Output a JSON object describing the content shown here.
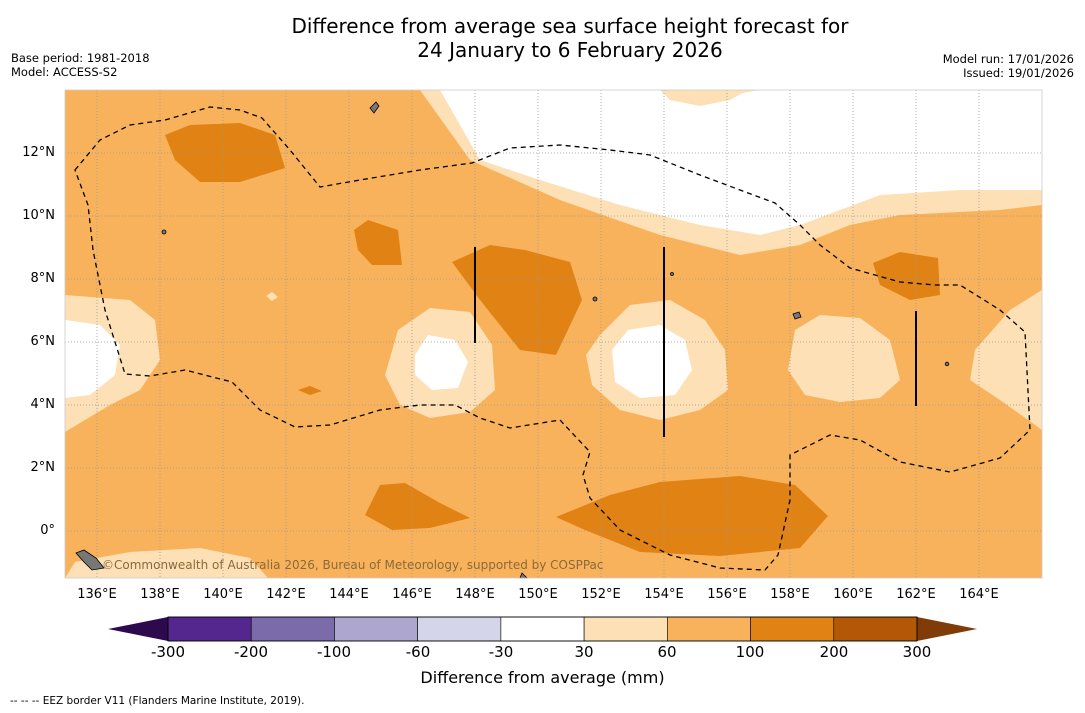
{
  "title_line1": "Difference from average sea surface height forecast for",
  "title_line2": "24 January to 6 February 2026",
  "base_period": "Base period: 1981-2018",
  "model": "Model: ACCESS-S2",
  "model_run": "Model run: 17/01/2026",
  "issued": "Issued: 19/01/2026",
  "copyright": "©Commonwealth of Australia 2026, Bureau of Meteorology, supported by COSPPac",
  "footnote": "--  --  -- EEZ border V11 (Flanders Marine Institute, 2019).",
  "colorbar_title": "Difference from average (mm)",
  "colorbar_ticks": [
    "-300",
    "-200",
    "-100",
    "-60",
    "-30",
    "30",
    "60",
    "100",
    "200",
    "300"
  ],
  "colorbar_colors": [
    "#54278f",
    "#7c6bab",
    "#ada7cf",
    "#d5d5e9",
    "#ffffff",
    "#fde0b5",
    "#f9b25c",
    "#e08214",
    "#b35806"
  ],
  "colorbar_extend_colors": [
    "#2d0a4e",
    "#7f3b08"
  ],
  "lat_labels": [
    "12°N",
    "10°N",
    "8°N",
    "6°N",
    "4°N",
    "2°N",
    "0°"
  ],
  "lon_labels": [
    "136°E",
    "138°E",
    "140°E",
    "142°E",
    "144°E",
    "146°E",
    "148°E",
    "150°E",
    "152°E",
    "154°E",
    "156°E",
    "158°E",
    "160°E",
    "162°E",
    "164°E"
  ],
  "legend_colors": {
    "background_30_60": "#fde0b5",
    "range_60_100": "#f9b25c",
    "range_100_200": "#e08214",
    "below_30": "#ffffff"
  }
}
